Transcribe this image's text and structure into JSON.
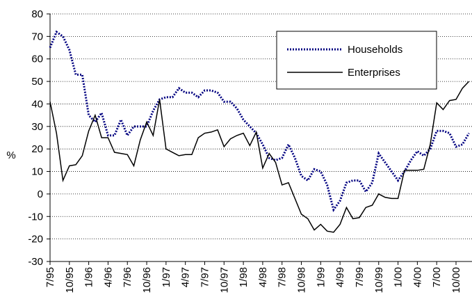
{
  "chart_data": {
    "type": "line",
    "ylabel": "%",
    "categories": [
      "7/95",
      null,
      null,
      "10/95",
      null,
      null,
      "1/96",
      null,
      null,
      "4/96",
      null,
      null,
      "7/96",
      null,
      null,
      "10/96",
      null,
      null,
      "1/97",
      null,
      null,
      "4/97",
      null,
      null,
      "7/97",
      null,
      null,
      "10/97",
      null,
      null,
      "1/98",
      null,
      null,
      "4/98",
      null,
      null,
      "7/98",
      null,
      null,
      "10/98",
      null,
      null,
      "1/99",
      null,
      null,
      "4/99",
      null,
      null,
      "7/99",
      null,
      null,
      "10/99",
      null,
      null,
      "1/00",
      null,
      null,
      "4/00",
      null,
      null,
      "7/00",
      null,
      null,
      "10/00",
      null,
      null
    ],
    "series": [
      {
        "name": "Households",
        "color": "#000080",
        "dash": true,
        "values": [
          65,
          72,
          70,
          64,
          53,
          53,
          35,
          32,
          36,
          26,
          26,
          33,
          26,
          30,
          30,
          30,
          37,
          42,
          43,
          43,
          47,
          45,
          45,
          43,
          46,
          46,
          45,
          41,
          41,
          38,
          33,
          30,
          27,
          22,
          16,
          15,
          16,
          22,
          16,
          8,
          6,
          11,
          10,
          4,
          -7,
          -3,
          5,
          6,
          6,
          1,
          5,
          18,
          14,
          10,
          6,
          10,
          15,
          19,
          17,
          20,
          28,
          28,
          27,
          21,
          22,
          27
        ]
      },
      {
        "name": "Enterprises",
        "color": "#000000",
        "dash": false,
        "values": [
          41,
          27,
          6,
          12.5,
          13,
          17,
          28,
          35,
          25,
          25,
          18.5,
          18,
          17.5,
          12.5,
          24,
          32,
          26,
          42,
          20,
          18.5,
          17,
          17.5,
          17.5,
          25,
          27,
          27.5,
          28.5,
          21,
          24.5,
          26,
          27,
          21.5,
          27.5,
          11.5,
          18,
          14,
          4,
          5,
          -2,
          -9,
          -11,
          -16,
          -13.5,
          -16.5,
          -17,
          -13.5,
          -6,
          -11,
          -10.5,
          -6,
          -5,
          0,
          -1.5,
          -2,
          -2,
          10.5,
          10.5,
          10.5,
          11,
          22,
          40.5,
          37.5,
          41.5,
          42,
          47,
          50
        ]
      }
    ],
    "ylim": [
      -30,
      80
    ],
    "yticks": [
      -30,
      -20,
      -10,
      0,
      10,
      20,
      30,
      40,
      50,
      60,
      70,
      80
    ],
    "grid": true,
    "legend": "upper right"
  }
}
